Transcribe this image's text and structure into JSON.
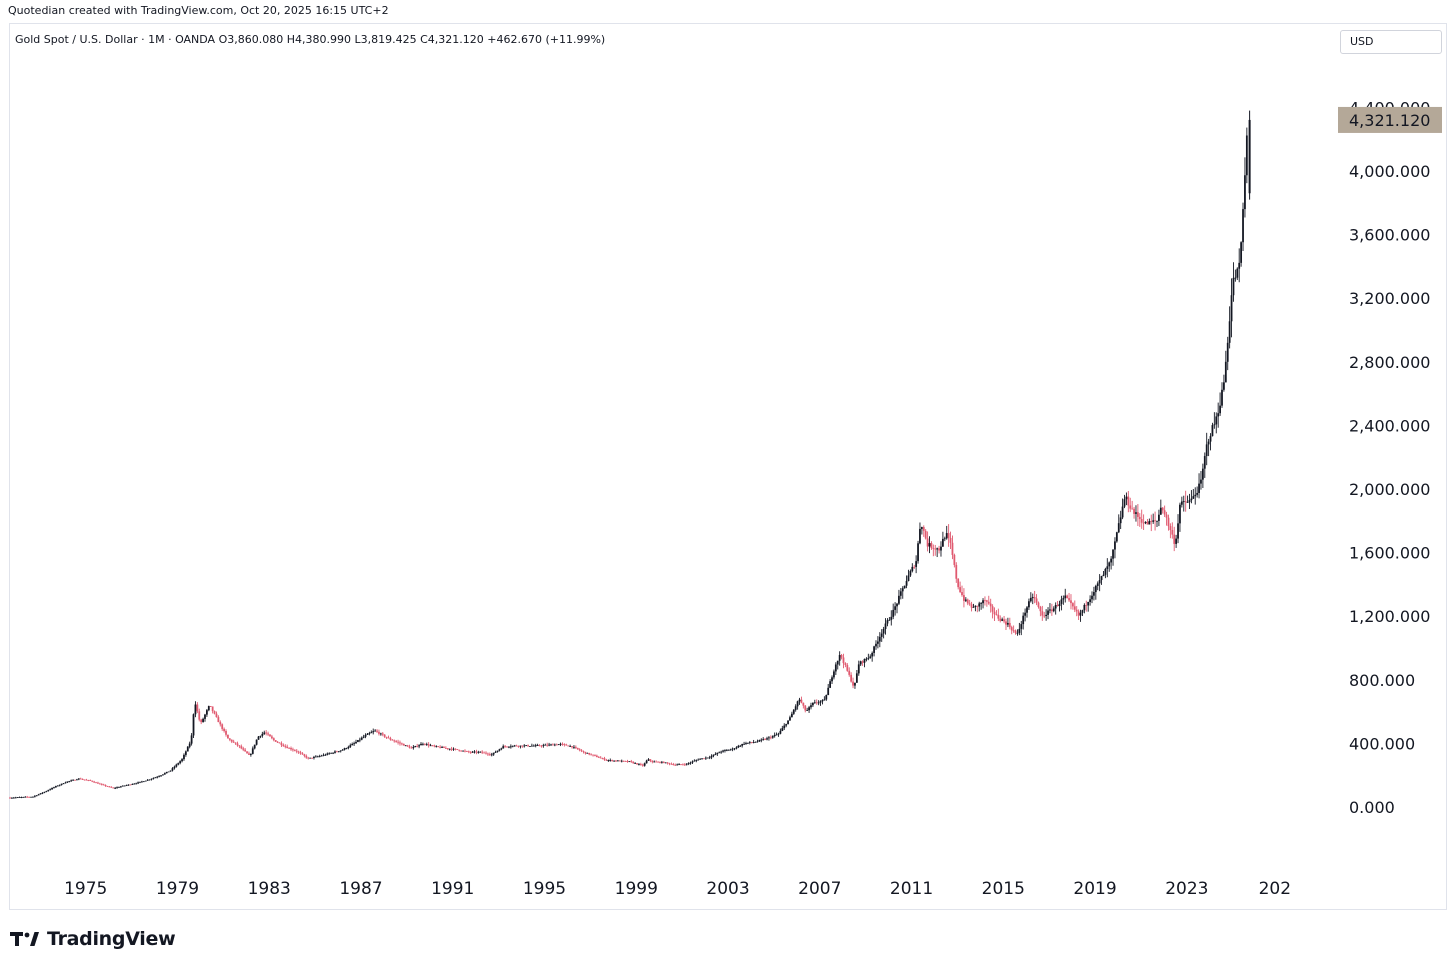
{
  "header": {
    "caption": "Quotedian created with TradingView.com, Oct 20, 2025 16:15 UTC+2"
  },
  "legend": {
    "text": "Gold Spot / U.S. Dollar · 1M · OANDA  O3,860.080  H4,380.990  L3,819.425  C4,321.120  +462.670 (+11.99%)"
  },
  "currency": "USD",
  "footer": {
    "brand": "TradingView",
    "logo_icon": "tradingview-logo-icon"
  },
  "colors": {
    "up": "#131722",
    "down": "#e0596f",
    "last_price_bg": "#b4a898",
    "axis_text": "#131722"
  },
  "chart_data": {
    "type": "candlestick",
    "interval": "1M",
    "series": [
      {
        "name": "Gold Spot / U.S. Dollar",
        "last": {
          "value": 4321.12,
          "label": "4,321.120"
        },
        "points": [
          [
            1972.0,
            58
          ],
          [
            1973.0,
            65
          ],
          [
            1973.5,
            95
          ],
          [
            1974.0,
            130
          ],
          [
            1974.5,
            160
          ],
          [
            1975.0,
            178
          ],
          [
            1975.5,
            165
          ],
          [
            1976.0,
            140
          ],
          [
            1976.5,
            118
          ],
          [
            1977.0,
            135
          ],
          [
            1977.5,
            150
          ],
          [
            1978.0,
            170
          ],
          [
            1978.5,
            195
          ],
          [
            1979.0,
            230
          ],
          [
            1979.5,
            300
          ],
          [
            1979.9,
            420
          ],
          [
            1980.05,
            670
          ],
          [
            1980.3,
            520
          ],
          [
            1980.7,
            640
          ],
          [
            1981.0,
            560
          ],
          [
            1981.5,
            430
          ],
          [
            1982.0,
            380
          ],
          [
            1982.45,
            320
          ],
          [
            1982.8,
            440
          ],
          [
            1983.1,
            470
          ],
          [
            1983.5,
            420
          ],
          [
            1984.0,
            380
          ],
          [
            1984.5,
            350
          ],
          [
            1985.0,
            305
          ],
          [
            1985.5,
            320
          ],
          [
            1986.0,
            340
          ],
          [
            1986.5,
            360
          ],
          [
            1987.0,
            400
          ],
          [
            1987.5,
            450
          ],
          [
            1987.9,
            480
          ],
          [
            1988.5,
            430
          ],
          [
            1989.0,
            400
          ],
          [
            1989.5,
            370
          ],
          [
            1990.0,
            400
          ],
          [
            1990.5,
            380
          ],
          [
            1991.0,
            370
          ],
          [
            1991.5,
            360
          ],
          [
            1992.0,
            345
          ],
          [
            1992.5,
            345
          ],
          [
            1993.0,
            330
          ],
          [
            1993.5,
            380
          ],
          [
            1994.0,
            385
          ],
          [
            1995.0,
            385
          ],
          [
            1996.0,
            395
          ],
          [
            1996.5,
            380
          ],
          [
            1997.0,
            345
          ],
          [
            1997.5,
            320
          ],
          [
            1998.0,
            295
          ],
          [
            1998.5,
            290
          ],
          [
            1999.0,
            285
          ],
          [
            1999.6,
            260
          ],
          [
            1999.8,
            300
          ],
          [
            2000.0,
            285
          ],
          [
            2000.5,
            280
          ],
          [
            2001.0,
            265
          ],
          [
            2001.5,
            270
          ],
          [
            2002.0,
            300
          ],
          [
            2002.5,
            315
          ],
          [
            2003.0,
            350
          ],
          [
            2003.5,
            365
          ],
          [
            2004.0,
            400
          ],
          [
            2004.5,
            410
          ],
          [
            2005.0,
            430
          ],
          [
            2005.5,
            460
          ],
          [
            2006.0,
            560
          ],
          [
            2006.4,
            680
          ],
          [
            2006.7,
            600
          ],
          [
            2007.0,
            650
          ],
          [
            2007.5,
            670
          ],
          [
            2008.0,
            900
          ],
          [
            2008.2,
            960
          ],
          [
            2008.8,
            750
          ],
          [
            2009.0,
            900
          ],
          [
            2009.5,
            950
          ],
          [
            2010.0,
            1100
          ],
          [
            2010.5,
            1230
          ],
          [
            2011.0,
            1400
          ],
          [
            2011.5,
            1550
          ],
          [
            2011.7,
            1800
          ],
          [
            2012.0,
            1650
          ],
          [
            2012.5,
            1620
          ],
          [
            2012.8,
            1720
          ],
          [
            2013.0,
            1650
          ],
          [
            2013.3,
            1400
          ],
          [
            2013.6,
            1300
          ],
          [
            2014.0,
            1250
          ],
          [
            2014.5,
            1300
          ],
          [
            2015.0,
            1200
          ],
          [
            2015.5,
            1150
          ],
          [
            2015.9,
            1080
          ],
          [
            2016.3,
            1250
          ],
          [
            2016.6,
            1330
          ],
          [
            2017.0,
            1200
          ],
          [
            2017.5,
            1250
          ],
          [
            2018.0,
            1320
          ],
          [
            2018.6,
            1200
          ],
          [
            2019.0,
            1300
          ],
          [
            2019.5,
            1420
          ],
          [
            2020.0,
            1550
          ],
          [
            2020.6,
            1950
          ],
          [
            2021.0,
            1850
          ],
          [
            2021.5,
            1780
          ],
          [
            2022.0,
            1800
          ],
          [
            2022.2,
            1900
          ],
          [
            2022.8,
            1650
          ],
          [
            2023.0,
            1900
          ],
          [
            2023.5,
            1930
          ],
          [
            2023.9,
            2030
          ],
          [
            2024.2,
            2300
          ],
          [
            2024.6,
            2450
          ],
          [
            2024.9,
            2650
          ],
          [
            2025.0,
            2800
          ],
          [
            2025.3,
            3300
          ],
          [
            2025.6,
            3400
          ],
          [
            2025.8,
            3860
          ],
          [
            2025.95,
            4321
          ]
        ]
      }
    ],
    "x_axis": {
      "range": [
        1972.0,
        2029.8
      ],
      "ticks": [
        "1975",
        "1979",
        "1983",
        "1987",
        "1991",
        "1995",
        "1999",
        "2003",
        "2007",
        "2011",
        "2015",
        "2019",
        "2023",
        "202"
      ]
    },
    "y_axis": {
      "range": [
        -560,
        4820
      ],
      "ticks": [
        "0.000",
        "400.000",
        "800.000",
        "1,200.000",
        "1,600.000",
        "2,000.000",
        "2,400.000",
        "2,800.000",
        "3,200.000",
        "3,600.000",
        "4,000.000",
        "4,400.000"
      ]
    },
    "grid": false,
    "legend_position": "top-left"
  }
}
